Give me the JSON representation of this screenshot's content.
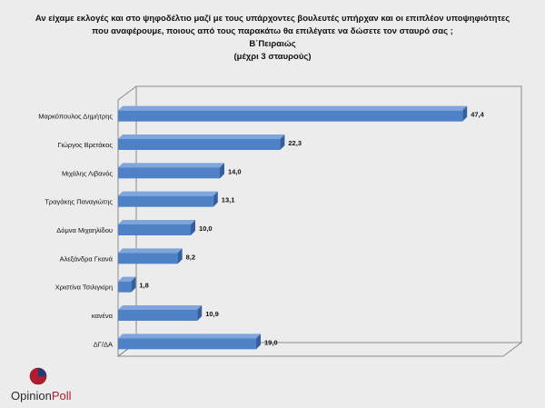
{
  "title_lines": [
    "Αν είχαμε εκλογές και στο ψηφοδέλτιο μαζί με τους υπάρχοντες βουλευτές υπήρχαν και οι επιπλέον υποψηφιότητες",
    "που αναφέρουμε, ποιους από τους παρακάτω θα επιλέγατε να δώσετε τον σταυρό σας ;",
    "Β΄Πειραιώς",
    "(μέχρι 3 σταυρούς)"
  ],
  "logo": {
    "part1": "Opinion",
    "part2": "Poll"
  },
  "colors": {
    "bar": "#4f81c7",
    "bar_dark": "#35609e",
    "bar_top": "#7fa6dc",
    "poll_red": "#b01c2e"
  },
  "chart_data": {
    "type": "bar",
    "orientation": "horizontal",
    "title": "Αν είχαμε εκλογές και στο ψηφοδέλτιο μαζί με τους υπάρχοντες βουλευτές υπήρχαν και οι επιπλέον υποψηφιότητες που αναφέρουμε, ποιους από τους παρακάτω θα επιλέγατε να δώσετε τον σταυρό σας ; Β΄Πειραιώς (μέχρι 3 σταυρούς)",
    "categories": [
      "Μαρκόπουλος Δημήτρης",
      "Γιώργος Βρετάκος",
      "Μιχάλης Λιβανός",
      "Τραγάκης Παναγιώτης",
      "Δόμνα Μιχαηλίδου",
      "Αλεξάνδρα Γκανά",
      "Χριστίνα Τσιλιγκίρη",
      "κανένα",
      "ΔΓ/ΔΑ"
    ],
    "values": [
      47.4,
      22.3,
      14.0,
      13.1,
      10.0,
      8.2,
      1.8,
      10.9,
      19.0
    ],
    "value_labels": [
      "47,4",
      "22,3",
      "14,0",
      "13,1",
      "10,0",
      "8,2",
      "1,8",
      "10,9",
      "19,0"
    ],
    "xlim": [
      0,
      50
    ],
    "grid": false,
    "legend": "none"
  }
}
